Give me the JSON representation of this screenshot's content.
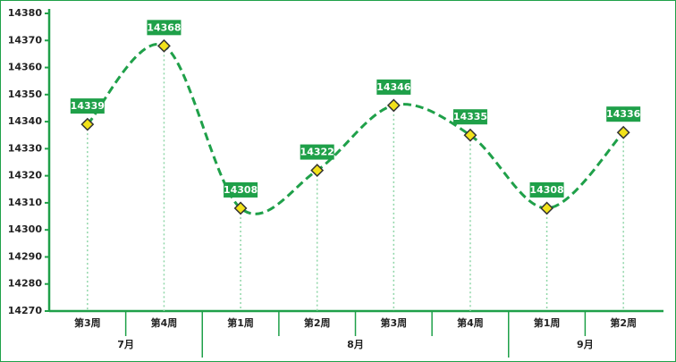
{
  "chart_data": {
    "type": "line",
    "groups": [
      {
        "name": "7月",
        "categories": [
          "第3周",
          "第4周"
        ]
      },
      {
        "name": "8月",
        "categories": [
          "第1周",
          "第2周",
          "第3周",
          "第4周"
        ]
      },
      {
        "name": "9月",
        "categories": [
          "第1周",
          "第2周"
        ]
      }
    ],
    "values": [
      14339,
      14368,
      14308,
      14322,
      14346,
      14335,
      14308,
      14336
    ],
    "color": "#1fa049",
    "marker_color": "#f2e21a",
    "ylim": [
      14270,
      14380
    ],
    "yticks": [
      14270,
      14280,
      14290,
      14300,
      14310,
      14320,
      14330,
      14340,
      14350,
      14360,
      14370,
      14380
    ]
  }
}
